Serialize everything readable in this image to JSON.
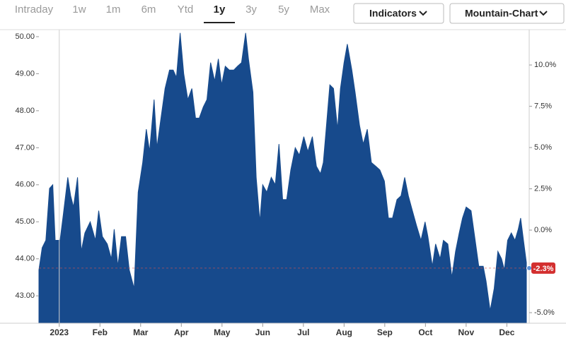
{
  "tabs": [
    "Intraday",
    "1w",
    "1m",
    "6m",
    "Ytd",
    "1y",
    "3y",
    "5y",
    "Max"
  ],
  "selected_tab": 5,
  "buttons": [
    "Indicators",
    "Mountain-Chart"
  ],
  "chart_data": {
    "type": "area",
    "color": "#174a8c",
    "xlim": [
      -0.5,
      11.55
    ],
    "xticks": [
      {
        "value": 0,
        "label": "2023"
      },
      {
        "value": 1,
        "label": "Feb"
      },
      {
        "value": 2,
        "label": "Mar"
      },
      {
        "value": 3,
        "label": "Apr"
      },
      {
        "value": 4,
        "label": "May"
      },
      {
        "value": 5,
        "label": "Jun"
      },
      {
        "value": 6,
        "label": "Jul"
      },
      {
        "value": 7,
        "label": "Aug"
      },
      {
        "value": 8,
        "label": "Sep"
      },
      {
        "value": 9,
        "label": "Oct"
      },
      {
        "value": 10,
        "label": "Nov"
      },
      {
        "value": 11,
        "label": "Dec"
      }
    ],
    "ylim": [
      42.26,
      50.19
    ],
    "yticks": [
      {
        "value": 43,
        "label": "43.00"
      },
      {
        "value": 44,
        "label": "44.00"
      },
      {
        "value": 45,
        "label": "45.00"
      },
      {
        "value": 46,
        "label": "46.00"
      },
      {
        "value": 47,
        "label": "47.00"
      },
      {
        "value": 48,
        "label": "48.00"
      },
      {
        "value": 49,
        "label": "49.00"
      },
      {
        "value": 50,
        "label": "50.00"
      }
    ],
    "y2lim": [
      -5.64,
      12.14
    ],
    "y2ticks": [
      {
        "value": -5,
        "label": "-5.0%"
      },
      {
        "value": 0,
        "label": "0.0%"
      },
      {
        "value": 2.5,
        "label": "2.5%"
      },
      {
        "value": 5,
        "label": "5.0%"
      },
      {
        "value": 7.5,
        "label": "7.5%"
      },
      {
        "value": 10,
        "label": "10.0%"
      }
    ],
    "current_change": {
      "value": -2.3,
      "label": "-2.3%"
    },
    "x": [
      -0.5,
      -0.42,
      -0.33,
      -0.24,
      -0.16,
      -0.1,
      0.02,
      0.1,
      0.21,
      0.28,
      0.35,
      0.45,
      0.54,
      0.63,
      0.76,
      0.89,
      0.97,
      1.06,
      1.18,
      1.28,
      1.35,
      1.44,
      1.53,
      1.63,
      1.72,
      1.84,
      1.94,
      2.05,
      2.14,
      2.22,
      2.33,
      2.4,
      2.5,
      2.6,
      2.71,
      2.8,
      2.88,
      2.97,
      3.06,
      3.16,
      3.26,
      3.35,
      3.44,
      3.54,
      3.63,
      3.72,
      3.82,
      3.91,
      3.99,
      4.08,
      4.18,
      4.29,
      4.38,
      4.48,
      4.58,
      4.65,
      4.76,
      4.84,
      4.93,
      5.0,
      5.1,
      5.21,
      5.31,
      5.4,
      5.49,
      5.59,
      5.69,
      5.8,
      5.9,
      6.01,
      6.11,
      6.22,
      6.32,
      6.42,
      6.49,
      6.56,
      6.65,
      6.74,
      6.84,
      6.91,
      7.0,
      7.08,
      7.19,
      7.27,
      7.38,
      7.47,
      7.57,
      7.67,
      7.78,
      7.88,
      7.99,
      8.09,
      8.19,
      8.3,
      8.4,
      8.49,
      8.58,
      8.68,
      8.78,
      8.89,
      8.99,
      9.06,
      9.17,
      9.25,
      9.36,
      9.44,
      9.55,
      9.65,
      9.74,
      9.83,
      9.91,
      10.0,
      10.12,
      10.21,
      10.31,
      10.42,
      10.49,
      10.59,
      10.69,
      10.78,
      10.87,
      10.94,
      11.02,
      11.11,
      11.2,
      11.28,
      11.34,
      11.41,
      11.48
    ],
    "values": [
      43.7,
      44.3,
      44.5,
      45.9,
      46.0,
      44.5,
      44.5,
      45.2,
      46.2,
      45.7,
      45.4,
      46.2,
      44.2,
      44.7,
      45.0,
      44.5,
      45.3,
      44.6,
      44.4,
      44.0,
      44.8,
      43.8,
      44.6,
      44.6,
      43.7,
      43.2,
      45.8,
      46.6,
      47.5,
      46.9,
      48.3,
      47.0,
      47.8,
      48.6,
      49.1,
      49.1,
      48.9,
      50.1,
      49.0,
      48.3,
      48.6,
      47.8,
      47.8,
      48.1,
      48.3,
      49.3,
      48.8,
      49.4,
      48.7,
      49.2,
      49.1,
      49.1,
      49.2,
      49.3,
      50.1,
      49.4,
      48.5,
      46.2,
      45.0,
      46.0,
      45.8,
      46.2,
      46.0,
      47.1,
      45.6,
      45.6,
      46.4,
      47.0,
      46.8,
      47.3,
      46.9,
      47.3,
      46.5,
      46.3,
      46.6,
      47.5,
      48.7,
      48.6,
      47.5,
      48.6,
      49.3,
      49.8,
      49.1,
      48.5,
      47.6,
      47.1,
      47.5,
      46.6,
      46.5,
      46.4,
      46.1,
      45.1,
      45.1,
      45.6,
      45.7,
      46.2,
      45.7,
      45.3,
      44.9,
      44.5,
      45.0,
      44.6,
      43.8,
      44.4,
      44.0,
      44.5,
      44.4,
      43.5,
      44.2,
      44.7,
      45.1,
      45.4,
      45.3,
      44.6,
      43.8,
      43.8,
      43.4,
      42.6,
      43.2,
      44.2,
      44.0,
      43.7,
      44.5,
      44.7,
      44.5,
      44.8,
      45.1,
      44.5,
      43.9
    ]
  }
}
